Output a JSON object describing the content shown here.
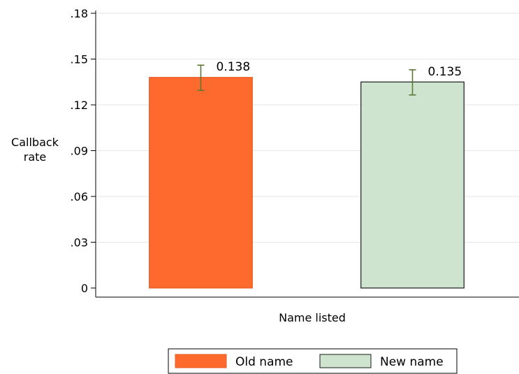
{
  "chart_data": {
    "type": "bar",
    "title": "",
    "xlabel": "Name listed",
    "ylabel": "Callback rate",
    "ylabel_lines": [
      "Callback",
      "rate"
    ],
    "ylim": [
      0,
      0.18
    ],
    "yticks": [
      0,
      0.03,
      0.06,
      0.09,
      0.12,
      0.15,
      0.18
    ],
    "ytick_labels": [
      "0",
      ".03",
      ".06",
      ".09",
      ".12",
      ".15",
      ".18"
    ],
    "grid": true,
    "legend_position": "bottom",
    "categories": [
      "Old name",
      "New name"
    ],
    "values": [
      0.138,
      0.135
    ],
    "value_labels": [
      "0.138",
      "0.135"
    ],
    "error_bars": [
      {
        "low": 0.1295,
        "high": 0.146
      },
      {
        "low": 0.1265,
        "high": 0.143
      }
    ],
    "colors": {
      "bars": [
        "#fe692e",
        "#cfe4cf"
      ],
      "bar_outlines": [
        "#e55a22",
        "#1a1a1a"
      ],
      "error_bar": "#5a7a33",
      "grid": "#e6e6e6",
      "axis": "#000000"
    },
    "legend": [
      {
        "label": "Old name",
        "color": "#fe692e",
        "outline": "#e55a22"
      },
      {
        "label": "New name",
        "color": "#cfe4cf",
        "outline": "#1a1a1a"
      }
    ]
  }
}
